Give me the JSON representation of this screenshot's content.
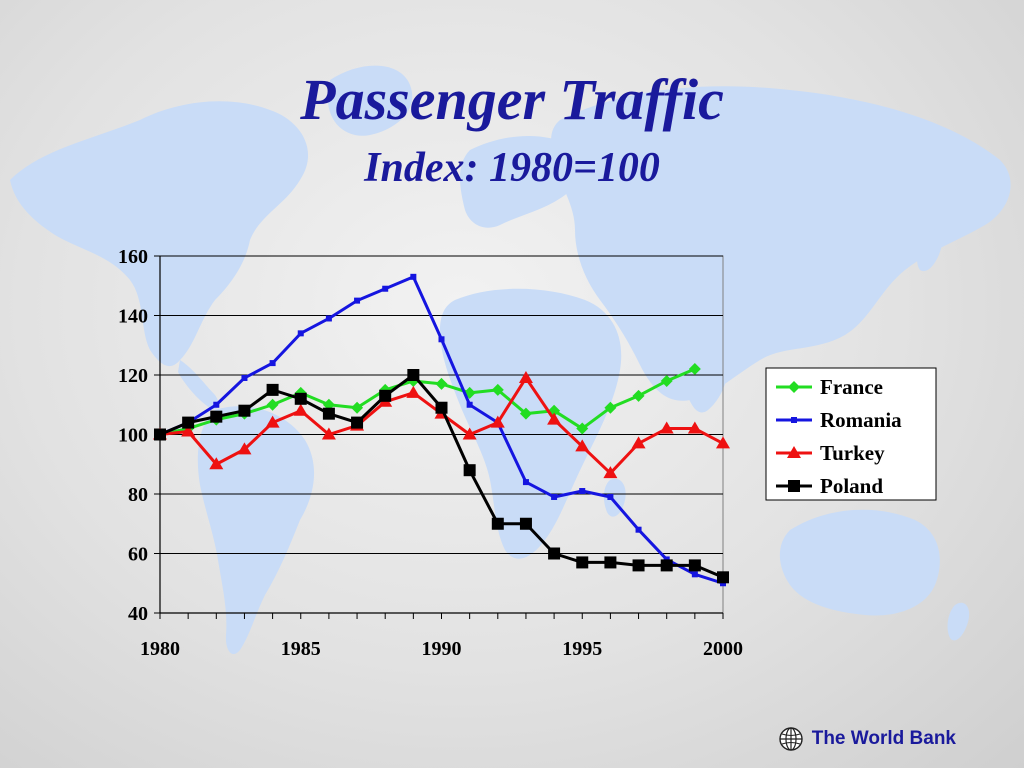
{
  "slide": {
    "title": "Passenger Traffic",
    "subtitle": "Index: 1980=100",
    "footer": "The World Bank"
  },
  "colors": {
    "title": "#1a1a9c",
    "map": "#c9dcf7"
  },
  "icons": {
    "footer_logo": "globe-icon"
  },
  "chart_data": {
    "type": "line",
    "title": "",
    "xlabel": "",
    "ylabel": "",
    "xlim": [
      1980,
      2000
    ],
    "ylim": [
      40,
      160
    ],
    "x_ticks": [
      1980,
      1985,
      1990,
      1995,
      2000
    ],
    "y_ticks": [
      40,
      60,
      80,
      100,
      120,
      140,
      160
    ],
    "grid": "horizontal",
    "legend": "right",
    "series": [
      {
        "name": "France",
        "color": "#22dd22",
        "marker": "diamond",
        "x": [
          1980,
          1981,
          1982,
          1983,
          1984,
          1985,
          1986,
          1987,
          1988,
          1989,
          1990,
          1991,
          1992,
          1993,
          1994,
          1995,
          1996,
          1997,
          1998,
          1999
        ],
        "values": [
          100,
          102,
          105,
          107,
          110,
          114,
          110,
          109,
          115,
          118,
          117,
          114,
          115,
          107,
          108,
          102,
          109,
          113,
          118,
          122
        ]
      },
      {
        "name": "Romania",
        "color": "#1515e0",
        "marker": "square-small",
        "x": [
          1980,
          1981,
          1982,
          1983,
          1984,
          1985,
          1986,
          1987,
          1988,
          1989,
          1990,
          1991,
          1992,
          1993,
          1994,
          1995,
          1996,
          1997,
          1998,
          1999,
          2000
        ],
        "values": [
          100,
          104,
          110,
          119,
          124,
          134,
          139,
          145,
          149,
          153,
          132,
          110,
          104,
          84,
          79,
          81,
          79,
          68,
          58,
          53,
          50
        ]
      },
      {
        "name": "Turkey",
        "color": "#ee1111",
        "marker": "triangle",
        "x": [
          1980,
          1981,
          1982,
          1983,
          1984,
          1985,
          1986,
          1987,
          1988,
          1989,
          1990,
          1991,
          1992,
          1993,
          1994,
          1995,
          1996,
          1997,
          1998,
          1999,
          2000
        ],
        "values": [
          100,
          101,
          90,
          95,
          104,
          108,
          100,
          103,
          111,
          114,
          107,
          100,
          104,
          119,
          105,
          96,
          87,
          97,
          102,
          102,
          97
        ]
      },
      {
        "name": "Poland",
        "color": "#000000",
        "marker": "square",
        "x": [
          1980,
          1981,
          1982,
          1983,
          1984,
          1985,
          1986,
          1987,
          1988,
          1989,
          1990,
          1991,
          1992,
          1993,
          1994,
          1995,
          1996,
          1997,
          1998,
          1999,
          2000
        ],
        "values": [
          100,
          104,
          106,
          108,
          115,
          112,
          107,
          104,
          113,
          120,
          109,
          88,
          70,
          70,
          60,
          57,
          57,
          56,
          56,
          56,
          52
        ]
      }
    ]
  }
}
